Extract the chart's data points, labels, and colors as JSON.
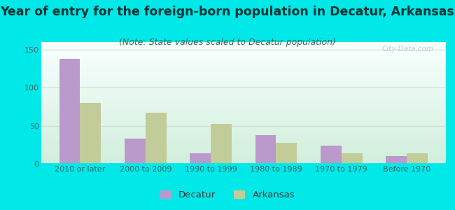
{
  "title": "Year of entry for the foreign-born population in Decatur, Arkansas",
  "subtitle": "(Note: State values scaled to Decatur population)",
  "categories": [
    "2010 or later",
    "2000 to 2009",
    "1990 to 1999",
    "1980 to 1989",
    "1970 to 1979",
    "Before 1970"
  ],
  "decatur_values": [
    138,
    33,
    14,
    38,
    24,
    10
  ],
  "arkansas_values": [
    80,
    67,
    52,
    28,
    14,
    14
  ],
  "decatur_color": "#bb99cc",
  "arkansas_color": "#c2cc99",
  "background_outer": "#00e8e8",
  "background_inner_top": "#f8ffff",
  "background_inner_bottom": "#d0eedb",
  "ylim": [
    0,
    160
  ],
  "yticks": [
    0,
    50,
    100,
    150
  ],
  "bar_width": 0.32,
  "grid_color": "#ccddcc",
  "title_fontsize": 12.5,
  "subtitle_fontsize": 9.0,
  "tick_fontsize": 8.0,
  "legend_fontsize": 9.5,
  "watermark_text": "City-Data.com"
}
